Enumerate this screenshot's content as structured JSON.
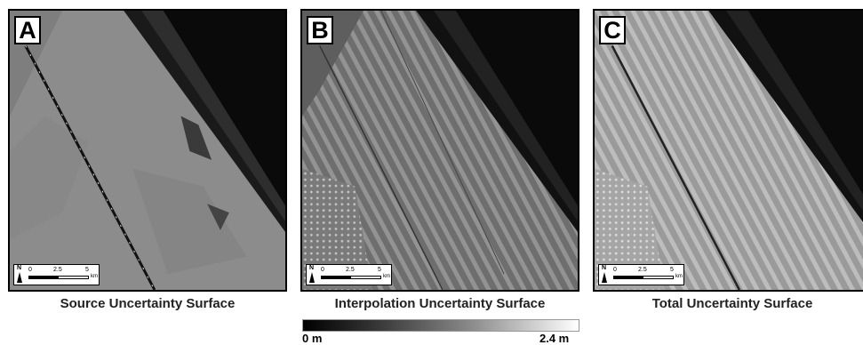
{
  "panels": [
    {
      "letter": "A",
      "caption": "Source Uncertainty Surface",
      "scale": {
        "north": "N",
        "tick0": "0",
        "tick1": "2.5",
        "tick2": "5",
        "unit": "km"
      },
      "land_gray": "#8c8c8c"
    },
    {
      "letter": "B",
      "caption": "Interpolation Uncertainty Surface",
      "scale": {
        "north": "N",
        "tick0": "0",
        "tick1": "2.5",
        "tick2": "5",
        "unit": "km"
      },
      "land_gray": "#7a7a7a"
    },
    {
      "letter": "C",
      "caption": "Total Uncertainty Surface",
      "scale": {
        "north": "N",
        "tick0": "0",
        "tick1": "2.5",
        "tick2": "5",
        "unit": "km"
      },
      "land_gray": "#a8a8a8"
    }
  ],
  "legend": {
    "min_label": "0 m",
    "max_label": "2.4 m",
    "color_low": "#000000",
    "color_high": "#ffffff"
  }
}
